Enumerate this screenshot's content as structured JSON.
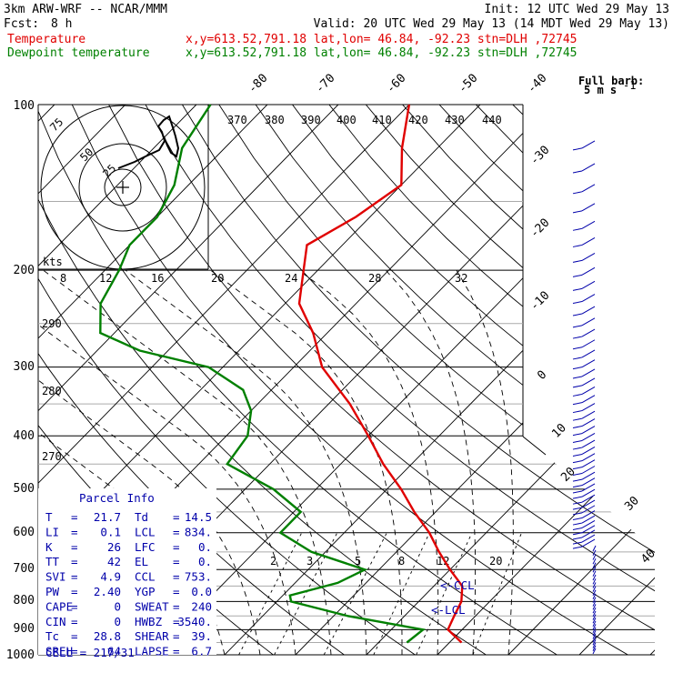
{
  "header": {
    "model": "3km ARW-WRF -- NCAR/MMM",
    "init": "Init: 12 UTC Wed 29 May 13",
    "fcst_label": "Fcst:",
    "fcst_value": "8 h",
    "valid": "Valid: 20 UTC Wed 29 May 13 (14 MDT Wed 29 May 13)",
    "temp_label": "Temperature",
    "temp_loc": "x,y=613.52,791.18   lat,lon= 46.84, -92.23  stn=DLH ,72745",
    "dew_label": "Dewpoint temperature",
    "dew_loc": "x,y=613.52,791.18   lat,lon= 46.84, -92.23  stn=DLH ,72745",
    "barb_legend": "Full barb:",
    "barb_legend_units": "5 m s",
    "barb_legend_exp": "-1"
  },
  "colors": {
    "temperature": "#e00000",
    "dewpoint": "#008000",
    "parcel_text": "#0000aa",
    "wind_barbs": "#0000aa"
  },
  "chart_data": {
    "type": "line",
    "diagram": "skew-T log-p",
    "pressure_ticks": [
      "100",
      "200",
      "300",
      "400",
      "500",
      "600",
      "700",
      "800",
      "900",
      "1000"
    ],
    "skewed_isotherm_labels": [
      "-80",
      "-70",
      "-60",
      "-50",
      "-40",
      "-30",
      "-20",
      "-10",
      "0",
      "10",
      "20",
      "30",
      "40"
    ],
    "potential_temp_labels": [
      "370",
      "380",
      "390",
      "400",
      "410",
      "420",
      "430",
      "440"
    ],
    "left_theta_labels": [
      "290",
      "280",
      "270"
    ],
    "hodograph_speed_labels": [
      "8",
      "12",
      "16",
      "20",
      "24",
      "28",
      "32"
    ],
    "hodograph_units": "kts",
    "hodograph_ring_labels": [
      "25",
      "50",
      "75"
    ],
    "mixing_ratio_labels": [
      "2",
      "3",
      "5",
      "8",
      "12",
      "20"
    ],
    "ccl_marker": "<-CCL",
    "lcl_marker": "<-LCL",
    "series": [
      {
        "name": "Temperature",
        "color": "#e00000",
        "points": [
          [
            100,
            -60
          ],
          [
            120,
            -55
          ],
          [
            140,
            -50
          ],
          [
            160,
            -52
          ],
          [
            180,
            -55
          ],
          [
            200,
            -52
          ],
          [
            230,
            -48
          ],
          [
            260,
            -42
          ],
          [
            300,
            -36
          ],
          [
            350,
            -27
          ],
          [
            400,
            -20
          ],
          [
            450,
            -14
          ],
          [
            500,
            -8
          ],
          [
            550,
            -3
          ],
          [
            600,
            2
          ],
          [
            650,
            6
          ],
          [
            700,
            10
          ],
          [
            750,
            14
          ],
          [
            800,
            16
          ],
          [
            850,
            17
          ],
          [
            900,
            18
          ],
          [
            950,
            21.7
          ]
        ]
      },
      {
        "name": "Dewpoint temperature",
        "color": "#008000",
        "points": [
          [
            100,
            -88
          ],
          [
            120,
            -86
          ],
          [
            140,
            -82
          ],
          [
            160,
            -80
          ],
          [
            180,
            -80
          ],
          [
            200,
            -78
          ],
          [
            230,
            -76
          ],
          [
            260,
            -72
          ],
          [
            280,
            -64
          ],
          [
            300,
            -52
          ],
          [
            330,
            -44
          ],
          [
            360,
            -40
          ],
          [
            400,
            -37
          ],
          [
            450,
            -36
          ],
          [
            500,
            -26
          ],
          [
            550,
            -19
          ],
          [
            600,
            -19
          ],
          [
            650,
            -12
          ],
          [
            700,
            -2
          ],
          [
            740,
            -4
          ],
          [
            780,
            -9
          ],
          [
            800,
            -8
          ],
          [
            850,
            2
          ],
          [
            900,
            14.5
          ],
          [
            950,
            14
          ]
        ]
      }
    ]
  },
  "parcel": {
    "title": "Parcel Info",
    "rows": [
      [
        "T",
        "=",
        "21.7",
        "Td",
        "=",
        "14.5"
      ],
      [
        "LI",
        "=",
        "0.1",
        "LCL",
        "=",
        "834."
      ],
      [
        "K",
        "=",
        "26",
        "LFC",
        "=",
        "0."
      ],
      [
        "TT",
        "=",
        "42",
        "EL",
        "=",
        "0."
      ],
      [
        "SVI",
        "=",
        "4.9",
        "CCL",
        "=",
        "753."
      ],
      [
        "PW",
        "=",
        "2.40",
        "YGP",
        "=",
        "0.0"
      ],
      [
        "CAPE",
        "=",
        "0",
        "SWEAT",
        "=",
        "240"
      ],
      [
        "CIN",
        "=",
        "0",
        "HWBZ",
        "=",
        "3540."
      ],
      [
        "Tc",
        "=",
        "28.8",
        "SHEAR",
        "=",
        "39."
      ],
      [
        "SREH",
        "=",
        "64",
        "LAPSE",
        "=",
        "6.7"
      ]
    ],
    "cell": "CELL = 217/31"
  }
}
